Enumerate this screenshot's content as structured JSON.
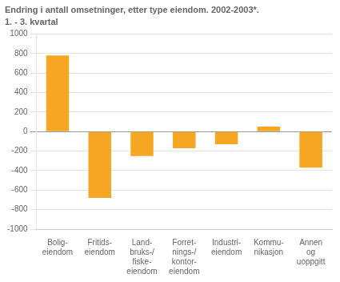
{
  "chart_data": {
    "type": "bar",
    "title": "Endring i antall omsetninger, etter type eiendom. 2002-2003*.",
    "subtitle": "1. - 3. kvartal",
    "categories": [
      "Bolig-\neiendom",
      "Fritids-\neiendom",
      "Land-\nbruks-/\nfiske-\neiendom",
      "Forret-\nnings-/\nkontor-\neiendom",
      "Industri-\neiendom",
      "Kommu-\nnikasjon",
      "Annen\nog\nuoppgitt"
    ],
    "values": [
      780,
      -680,
      -250,
      -170,
      -130,
      50,
      -370
    ],
    "color": "#f5a623",
    "ylim": [
      -1000,
      1000
    ],
    "yticks": [
      -1000,
      -800,
      -600,
      -400,
      -200,
      0,
      200,
      400,
      600,
      800,
      1000
    ],
    "grid": true
  }
}
